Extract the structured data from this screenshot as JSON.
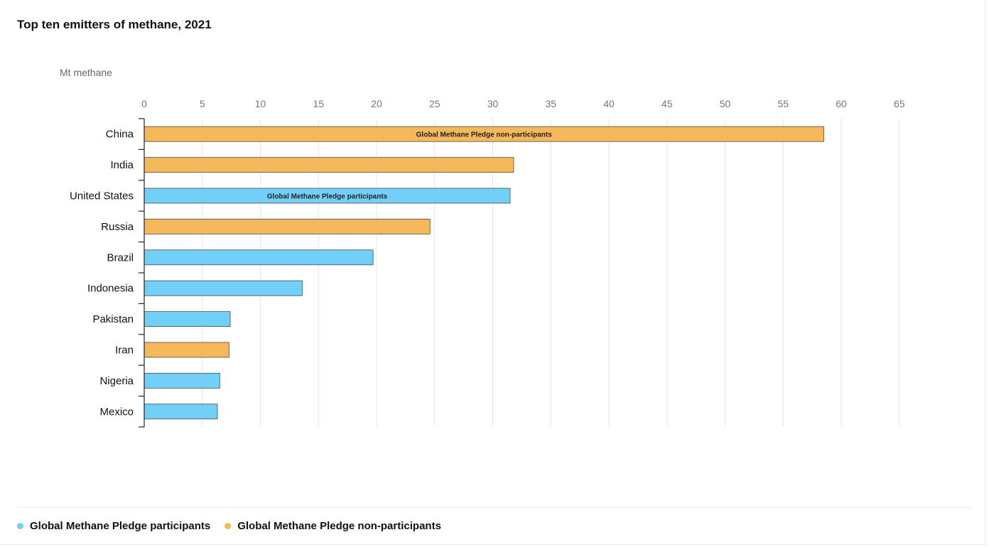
{
  "chart_data": {
    "type": "bar",
    "orientation": "horizontal",
    "title": "Top ten emitters of methane, 2021",
    "unit_label": "Mt methane",
    "xlim": [
      0,
      65
    ],
    "xticks": [
      0,
      5,
      10,
      15,
      20,
      25,
      30,
      35,
      40,
      45,
      50,
      55,
      60,
      65
    ],
    "grid": true,
    "legend_position": "bottom-left",
    "categories": [
      "China",
      "India",
      "United States",
      "Russia",
      "Brazil",
      "Indonesia",
      "Pakistan",
      "Iran",
      "Nigeria",
      "Mexico"
    ],
    "values": [
      58.5,
      31.8,
      31.5,
      24.6,
      19.7,
      13.6,
      7.4,
      7.3,
      6.5,
      6.3
    ],
    "groups": [
      "non-participants",
      "non-participants",
      "participants",
      "non-participants",
      "participants",
      "participants",
      "participants",
      "non-participants",
      "participants",
      "participants"
    ],
    "bar_annotations": [
      {
        "category": "China",
        "text": "Global Methane Pledge non-participants"
      },
      {
        "category": "United States",
        "text": "Global Methane Pledge participants"
      }
    ],
    "legend": [
      {
        "key": "participants",
        "label": "Global Methane Pledge participants",
        "color": "#72CFF8"
      },
      {
        "key": "non-participants",
        "label": "Global Methane Pledge non-participants",
        "color": "#F5B85B"
      }
    ]
  }
}
